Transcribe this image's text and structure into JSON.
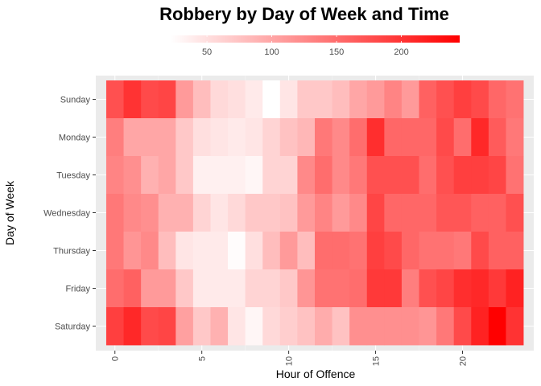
{
  "chart_data": {
    "type": "heatmap",
    "title": "Robbery by Day of Week and Time",
    "xlabel": "Hour of Offence",
    "ylabel": "Day of Week",
    "x_ticks": [
      "0",
      "5",
      "10",
      "15",
      "20"
    ],
    "x_tick_values": [
      0,
      5,
      10,
      15,
      20
    ],
    "xlim": [
      -0.5,
      23.5
    ],
    "legend": {
      "position": "top",
      "ticks": [
        "50",
        "100",
        "150",
        "200"
      ],
      "tick_values": [
        50,
        100,
        150,
        200
      ],
      "range": [
        22,
        245
      ],
      "low_color": "#ffffff",
      "high_color": "#ff0000"
    },
    "rows": [
      "Sunday",
      "Monday",
      "Tuesday",
      "Wednesday",
      "Thursday",
      "Friday",
      "Saturday"
    ],
    "hours": [
      0,
      1,
      2,
      3,
      4,
      5,
      6,
      7,
      8,
      9,
      10,
      11,
      12,
      13,
      14,
      15,
      16,
      17,
      18,
      19,
      20,
      21,
      22,
      23
    ],
    "values": [
      [
        175,
        200,
        180,
        185,
        110,
        80,
        55,
        50,
        40,
        22,
        45,
        70,
        70,
        80,
        100,
        110,
        130,
        110,
        160,
        175,
        190,
        180,
        155,
        145
      ],
      [
        135,
        100,
        100,
        100,
        70,
        50,
        45,
        40,
        45,
        60,
        75,
        85,
        140,
        125,
        150,
        205,
        155,
        155,
        155,
        180,
        150,
        210,
        165,
        140
      ],
      [
        130,
        120,
        90,
        100,
        70,
        35,
        35,
        35,
        30,
        60,
        60,
        125,
        150,
        125,
        140,
        175,
        175,
        175,
        150,
        175,
        190,
        190,
        185,
        145
      ],
      [
        140,
        125,
        120,
        90,
        90,
        60,
        45,
        55,
        70,
        70,
        75,
        110,
        130,
        110,
        125,
        185,
        155,
        155,
        155,
        170,
        170,
        160,
        160,
        175
      ],
      [
        140,
        115,
        125,
        80,
        45,
        40,
        40,
        25,
        50,
        80,
        110,
        80,
        150,
        150,
        145,
        190,
        180,
        155,
        145,
        145,
        140,
        180,
        160,
        160
      ],
      [
        150,
        160,
        110,
        110,
        70,
        40,
        40,
        40,
        60,
        60,
        70,
        115,
        145,
        145,
        150,
        195,
        195,
        135,
        175,
        185,
        205,
        210,
        195,
        215
      ],
      [
        190,
        210,
        180,
        185,
        105,
        70,
        90,
        45,
        30,
        55,
        65,
        75,
        95,
        75,
        120,
        120,
        120,
        120,
        115,
        140,
        180,
        215,
        245,
        200
      ]
    ]
  }
}
